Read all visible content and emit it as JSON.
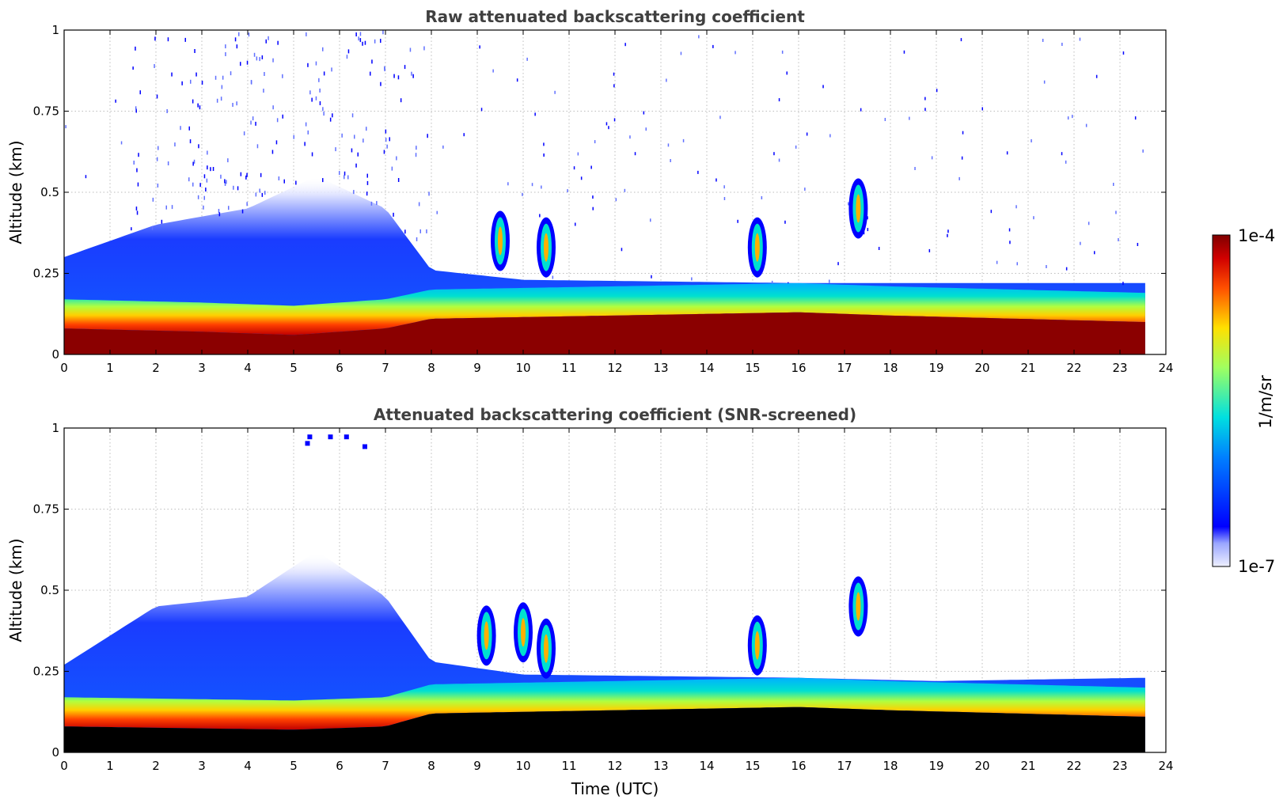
{
  "chart_data": [
    {
      "type": "heatmap",
      "title": "Raw attenuated backscattering coefficient",
      "xlabel": "",
      "ylabel": "Altitude (km)",
      "xlim": [
        0,
        24
      ],
      "ylim": [
        0,
        1
      ],
      "xticks": [
        "0",
        "1",
        "2",
        "3",
        "4",
        "5",
        "6",
        "7",
        "8",
        "9",
        "10",
        "11",
        "12",
        "13",
        "14",
        "15",
        "16",
        "17",
        "18",
        "19",
        "20",
        "21",
        "22",
        "23",
        "24"
      ],
      "yticks": [
        "0",
        "0.25",
        "0.5",
        "0.75",
        "1"
      ],
      "grid": true,
      "data_end_time": 23.55,
      "colormap": "jet",
      "scale": "log",
      "features": {
        "strong_layer_top_km": [
          [
            0,
            0.08
          ],
          [
            3,
            0.07
          ],
          [
            5,
            0.06
          ],
          [
            7,
            0.08
          ],
          [
            8,
            0.11
          ],
          [
            12,
            0.12
          ],
          [
            16,
            0.13
          ],
          [
            18,
            0.12
          ],
          [
            23.5,
            0.1
          ]
        ],
        "boundary_layer_top_km": [
          [
            0,
            0.3
          ],
          [
            2,
            0.4
          ],
          [
            4,
            0.45
          ],
          [
            5.5,
            0.55
          ],
          [
            7,
            0.45
          ],
          [
            8,
            0.26
          ],
          [
            10,
            0.23
          ],
          [
            16,
            0.22
          ],
          [
            19,
            0.22
          ],
          [
            23.5,
            0.22
          ]
        ],
        "clouds": [
          {
            "time": 9.5,
            "altitude_km": 0.35
          },
          {
            "time": 10.5,
            "altitude_km": 0.33
          },
          {
            "time": 15.1,
            "altitude_km": 0.33
          },
          {
            "time": 17.3,
            "altitude_km": 0.45
          }
        ]
      }
    },
    {
      "type": "heatmap",
      "title": "Attenuated backscattering coefficient (SNR-screened)",
      "xlabel": "Time (UTC)",
      "ylabel": "Altitude (km)",
      "xlim": [
        0,
        24
      ],
      "ylim": [
        0,
        1
      ],
      "xticks": [
        "0",
        "1",
        "2",
        "3",
        "4",
        "5",
        "6",
        "7",
        "8",
        "9",
        "10",
        "11",
        "12",
        "13",
        "14",
        "15",
        "16",
        "17",
        "18",
        "19",
        "20",
        "21",
        "22",
        "23",
        "24"
      ],
      "yticks": [
        "0",
        "0.25",
        "0.5",
        "0.75",
        "1"
      ],
      "grid": true,
      "data_end_time": 23.55,
      "colormap": "jet",
      "scale": "log",
      "features": {
        "saturated_layer_top_km": [
          [
            0,
            0.08
          ],
          [
            5,
            0.07
          ],
          [
            7,
            0.08
          ],
          [
            8,
            0.12
          ],
          [
            16,
            0.14
          ],
          [
            18,
            0.13
          ],
          [
            23.5,
            0.11
          ]
        ],
        "boundary_layer_top_km": [
          [
            0,
            0.27
          ],
          [
            2,
            0.45
          ],
          [
            4,
            0.48
          ],
          [
            5.5,
            0.62
          ],
          [
            7,
            0.48
          ],
          [
            8,
            0.28
          ],
          [
            10,
            0.24
          ],
          [
            16,
            0.23
          ],
          [
            19,
            0.22
          ],
          [
            23.5,
            0.23
          ]
        ],
        "clouds": [
          {
            "time": 9.2,
            "altitude_km": 0.36
          },
          {
            "time": 10.0,
            "altitude_km": 0.37
          },
          {
            "time": 10.5,
            "altitude_km": 0.32
          },
          {
            "time": 15.1,
            "altitude_km": 0.33
          },
          {
            "time": 17.3,
            "altitude_km": 0.45
          }
        ]
      }
    }
  ],
  "colorbar": {
    "label": "1/m/sr",
    "max_label": "1e-4",
    "min_label": "1e-7",
    "colormap": "jet"
  },
  "colors": {
    "title": "#404040",
    "grid": "#bdbdbd",
    "saturated": "#000000"
  }
}
